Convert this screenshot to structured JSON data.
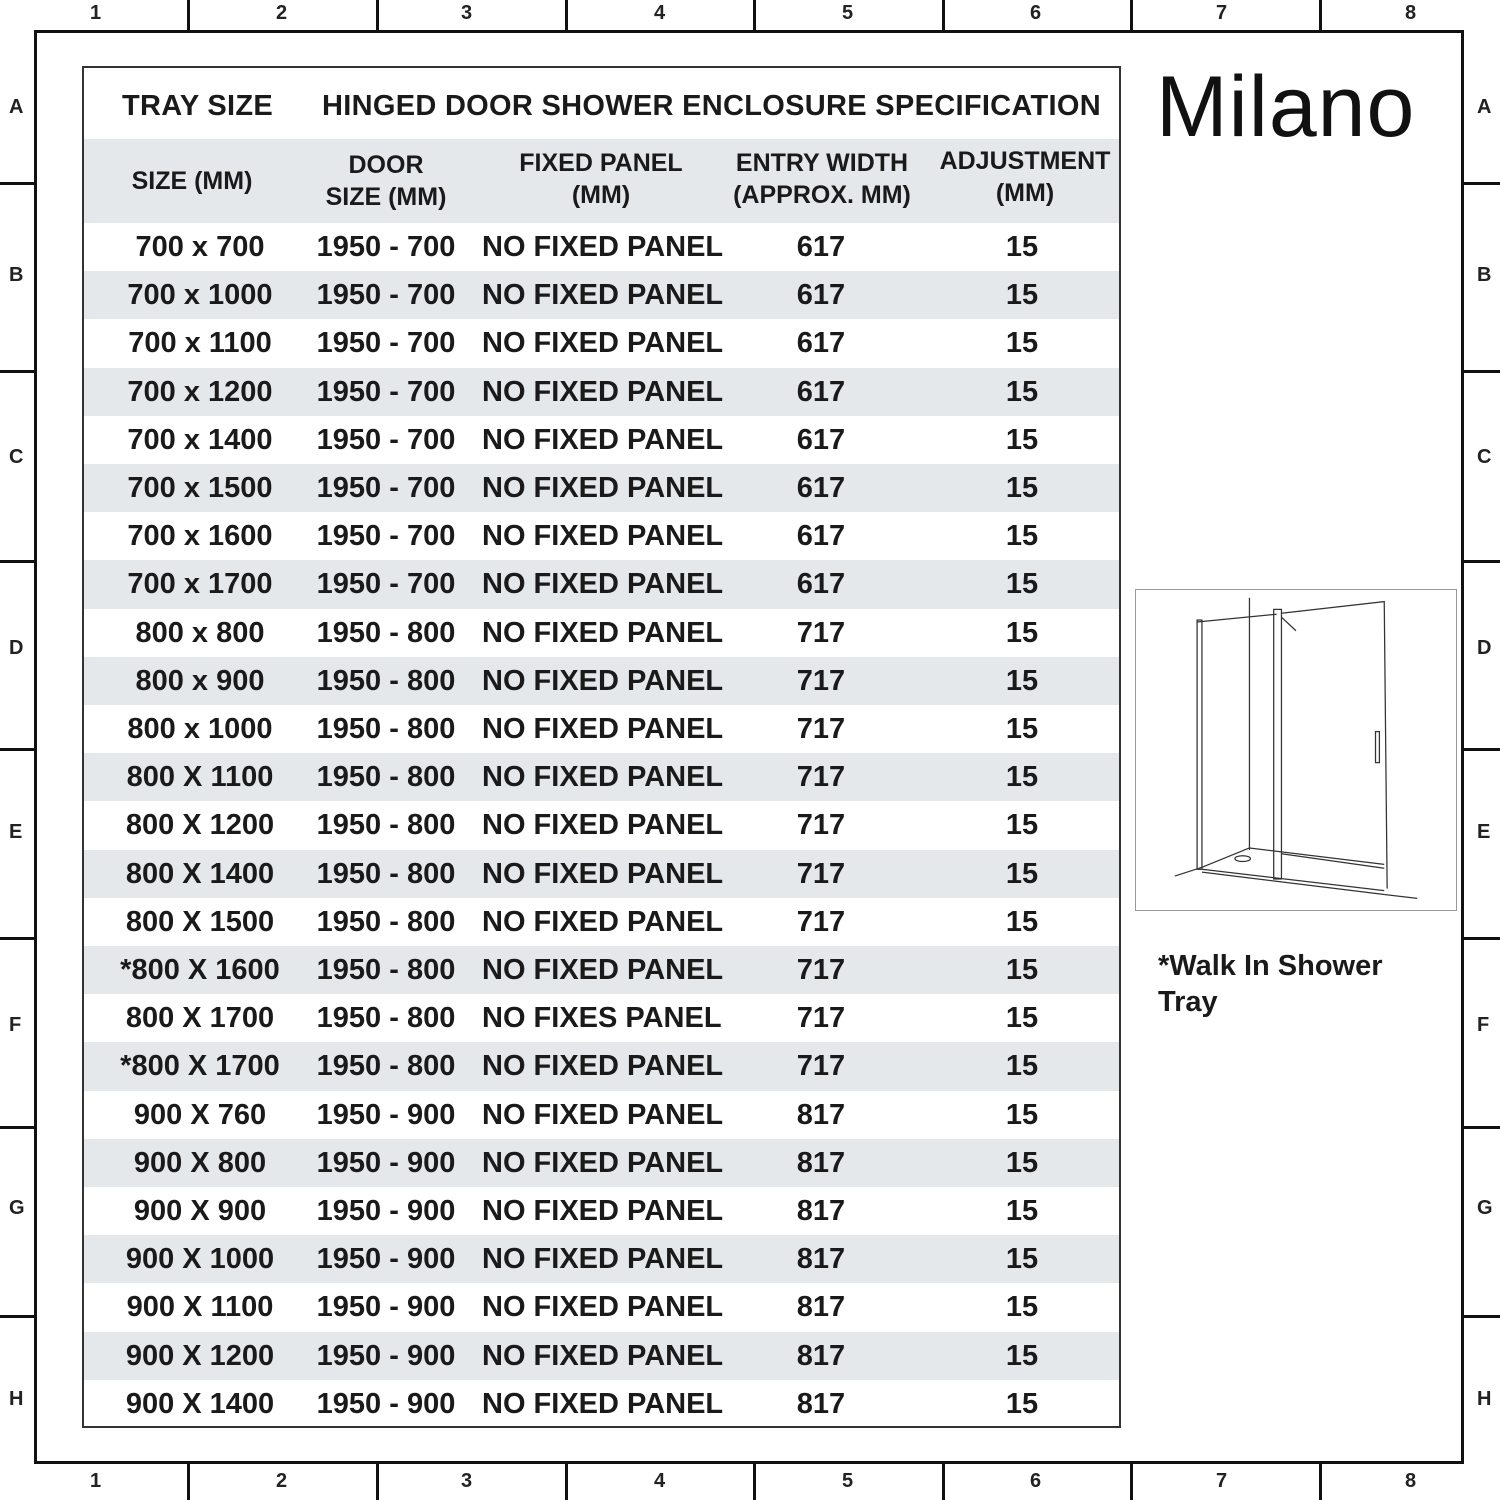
{
  "ruler": {
    "columns": [
      "1",
      "2",
      "3",
      "4",
      "5",
      "6",
      "7",
      "8"
    ],
    "rows": [
      "A",
      "B",
      "C",
      "D",
      "E",
      "F",
      "G",
      "H"
    ]
  },
  "brand": {
    "logo": "Milano"
  },
  "table": {
    "header_left": "TRAY SIZE",
    "header_title": "HINGED DOOR SHOWER ENCLOSURE SPECIFICATION",
    "columns": [
      {
        "line1": "SIZE (MM)",
        "line2": ""
      },
      {
        "line1": "DOOR",
        "line2": "SIZE (MM)"
      },
      {
        "line1": "FIXED PANEL",
        "line2": "(MM)"
      },
      {
        "line1": "ENTRY WIDTH",
        "line2": "(APPROX. MM)"
      },
      {
        "line1": "ADJUSTMENT",
        "line2": "(MM)"
      }
    ],
    "rows": [
      [
        "700 x 700",
        "1950 - 700",
        "NO FIXED PANEL",
        "617",
        "15"
      ],
      [
        "700 x 1000",
        "1950 - 700",
        "NO FIXED PANEL",
        "617",
        "15"
      ],
      [
        "700 x 1100",
        "1950 - 700",
        "NO FIXED PANEL",
        "617",
        "15"
      ],
      [
        "700 x 1200",
        "1950 - 700",
        "NO FIXED PANEL",
        "617",
        "15"
      ],
      [
        "700 x 1400",
        "1950 - 700",
        "NO FIXED PANEL",
        "617",
        "15"
      ],
      [
        "700 x 1500",
        "1950 - 700",
        "NO FIXED PANEL",
        "617",
        "15"
      ],
      [
        "700 x 1600",
        "1950 - 700",
        "NO FIXED PANEL",
        "617",
        "15"
      ],
      [
        "700 x 1700",
        "1950 - 700",
        "NO FIXED PANEL",
        "617",
        "15"
      ],
      [
        "800 x 800",
        "1950 - 800",
        "NO FIXED PANEL",
        "717",
        "15"
      ],
      [
        "800 x 900",
        "1950 - 800",
        "NO FIXED PANEL",
        "717",
        "15"
      ],
      [
        "800 x 1000",
        "1950 - 800",
        "NO FIXED PANEL",
        "717",
        "15"
      ],
      [
        "800 X 1100",
        "1950 - 800",
        "NO FIXED PANEL",
        "717",
        "15"
      ],
      [
        "800 X 1200",
        "1950 - 800",
        "NO FIXED PANEL",
        "717",
        "15"
      ],
      [
        "800 X 1400",
        "1950 - 800",
        "NO FIXED PANEL",
        "717",
        "15"
      ],
      [
        "800 X 1500",
        "1950 - 800",
        "NO FIXED PANEL",
        "717",
        "15"
      ],
      [
        "*800 X 1600",
        "1950 - 800",
        "NO FIXED PANEL",
        "717",
        "15"
      ],
      [
        "800 X 1700",
        "1950 - 800",
        "NO FIXES PANEL",
        "717",
        "15"
      ],
      [
        "*800 X 1700",
        "1950 - 800",
        "NO FIXED PANEL",
        "717",
        "15"
      ],
      [
        "900 X 760",
        "1950 - 900",
        "NO FIXED PANEL",
        "817",
        "15"
      ],
      [
        "900 X 800",
        "1950 - 900",
        "NO FIXED PANEL",
        "817",
        "15"
      ],
      [
        "900 X 900",
        "1950 - 900",
        "NO FIXED PANEL",
        "817",
        "15"
      ],
      [
        "900 X 1000",
        "1950 - 900",
        "NO FIXED PANEL",
        "817",
        "15"
      ],
      [
        "900 X 1100",
        "1950 - 900",
        "NO FIXED PANEL",
        "817",
        "15"
      ],
      [
        "900 X 1200",
        "1950 - 900",
        "NO FIXED PANEL",
        "817",
        "15"
      ],
      [
        "900 X 1400",
        "1950 - 900",
        "NO FIXED PANEL",
        "817",
        "15"
      ]
    ]
  },
  "note": "*Walk In Shower Tray",
  "colors": {
    "row_alt": "#e5e8eb",
    "border": "#111111"
  }
}
